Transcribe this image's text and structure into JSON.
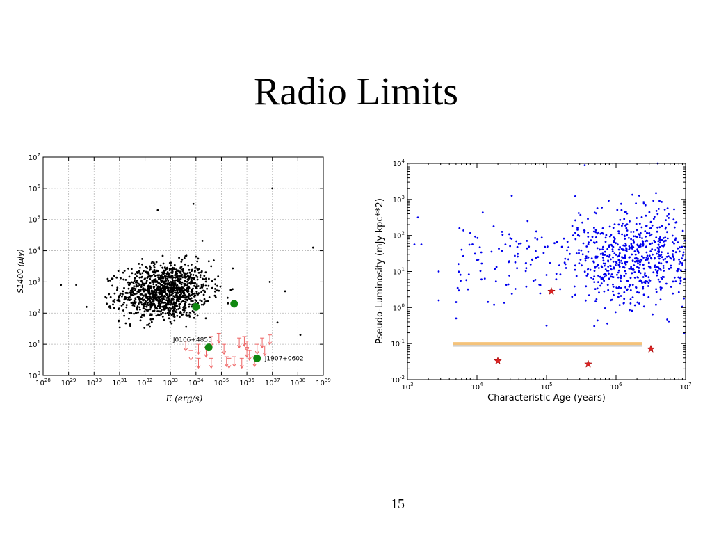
{
  "slide": {
    "title": "Radio Limits",
    "page_number": "15"
  },
  "chart_data": [
    {
      "type": "scatter",
      "title": "",
      "xlabel": "Ė  (erg/s)",
      "ylabel": "S1400  (μJy)",
      "x_scale": "log",
      "y_scale": "log",
      "xlim": [
        1e+28,
        1e+39
      ],
      "ylim": [
        1,
        10000000.0
      ],
      "x_tick_exponents": [
        28,
        29,
        30,
        31,
        32,
        33,
        34,
        35,
        36,
        37,
        38,
        39
      ],
      "y_tick_exponents": [
        0,
        1,
        2,
        3,
        4,
        5,
        6,
        7
      ],
      "grid": true,
      "legend": "none",
      "colors": {
        "pulsars": "#000000",
        "targets": "#118811",
        "limits": "#ee6666"
      },
      "background_pulsars": {
        "count": 1200,
        "logx_center": 32.8,
        "logx_sigma": 1.1,
        "logy_center": 2.7,
        "logy_sigma": 0.45,
        "outliers": [
          [
            28.7,
            2.9
          ],
          [
            29.3,
            2.9
          ],
          [
            29.7,
            2.2
          ],
          [
            30.5,
            2.3
          ],
          [
            32.5,
            5.3
          ],
          [
            33.9,
            5.5
          ],
          [
            37.0,
            6.0
          ],
          [
            38.6,
            4.1
          ],
          [
            38.1,
            1.3
          ],
          [
            37.2,
            1.7
          ],
          [
            37.5,
            2.7
          ],
          [
            36.9,
            3.0
          ]
        ]
      },
      "targets": [
        {
          "logx": 34.0,
          "logy": 2.2
        },
        {
          "logx": 35.5,
          "logy": 2.3
        },
        {
          "logx": 34.5,
          "logy": 0.9,
          "label": "J0106+4855",
          "label_logx": 33.1,
          "label_logy": 1.15
        },
        {
          "logx": 36.4,
          "logy": 0.55,
          "label": "J1907+0602",
          "label_logx": 36.7,
          "label_logy": 0.55
        }
      ],
      "upper_limits": [
        [
          33.6,
          1.1
        ],
        [
          33.8,
          0.8
        ],
        [
          34.1,
          0.55
        ],
        [
          34.4,
          0.9
        ],
        [
          34.6,
          1.25
        ],
        [
          34.6,
          0.55
        ],
        [
          34.9,
          1.35
        ],
        [
          35.1,
          1.0
        ],
        [
          35.2,
          0.6
        ],
        [
          35.5,
          0.6
        ],
        [
          35.7,
          1.2
        ],
        [
          35.8,
          0.55
        ],
        [
          35.9,
          1.25
        ],
        [
          36.0,
          1.1
        ],
        [
          36.1,
          0.8
        ],
        [
          36.3,
          0.6
        ],
        [
          36.4,
          1.0
        ],
        [
          36.6,
          1.2
        ],
        [
          36.7,
          0.95
        ],
        [
          36.9,
          1.3
        ],
        [
          35.3,
          0.55
        ],
        [
          34.1,
          1.0
        ],
        [
          36.0,
          0.9
        ]
      ]
    },
    {
      "type": "scatter",
      "title": "",
      "xlabel": "Characteristic Age (years)",
      "ylabel": "Pseudo-Luminosity (mJy-kpc**2)",
      "x_scale": "log",
      "y_scale": "log",
      "xlim": [
        1000,
        10000000.0
      ],
      "ylim": [
        0.01,
        10000
      ],
      "x_tick_exponents": [
        3,
        4,
        5,
        6,
        7
      ],
      "y_tick_exponents": [
        -2,
        -1,
        0,
        1,
        2,
        3,
        4
      ],
      "grid": false,
      "legend": "none",
      "colors": {
        "pulsars": "#0000ee",
        "stars": "#dd2222",
        "band": "#f4c27a",
        "band_shadow": "#cfcfcf"
      },
      "background_pulsars": {
        "count": 800,
        "logx_min": 3.7,
        "logx_max": 7.0,
        "logx_peak": 6.3,
        "logy_center": 1.4,
        "logy_sigma": 0.65,
        "outliers": [
          [
            3.15,
            2.5
          ],
          [
            3.1,
            1.75
          ],
          [
            3.2,
            1.75
          ],
          [
            3.45,
            1.0
          ],
          [
            3.45,
            0.2
          ],
          [
            3.7,
            0.15
          ],
          [
            3.7,
            -0.3
          ],
          [
            4.5,
            3.1
          ],
          [
            5.55,
            3.95
          ],
          [
            6.6,
            4.0
          ],
          [
            6.98,
            -0.7
          ],
          [
            5.0,
            -0.5
          ]
        ]
      },
      "magnetar_stars": [
        {
          "logx": 5.07,
          "logy": 0.45
        },
        {
          "logx": 4.3,
          "logy": -1.48
        },
        {
          "logx": 5.6,
          "logy": -1.57
        },
        {
          "logx": 6.5,
          "logy": -1.15
        }
      ],
      "limit_band": {
        "logx_from": 3.65,
        "logx_to": 6.37,
        "logy": -1.0
      }
    }
  ]
}
